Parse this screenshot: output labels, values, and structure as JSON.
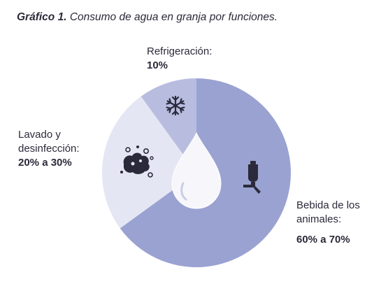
{
  "title": {
    "prefix": "Gráfico 1.",
    "text": "Consumo de agua en granja por funciones."
  },
  "chart_data": {
    "type": "pie",
    "title": "Gráfico 1. Consumo de agua en granja por funciones.",
    "slices": [
      {
        "label": "Bebida de los animales:",
        "value_label": "60% a 70%",
        "value": 65,
        "color": "#9aa2d1",
        "icon": "bottle-drinker-icon"
      },
      {
        "label": "Lavado y desinfección:",
        "value_label": "20% a 30%",
        "value": 25,
        "color": "#e4e6f3",
        "icon": "soap-bubbles-icon"
      },
      {
        "label": "Refrigeración:",
        "value_label": "10%",
        "value": 10,
        "color": "#b8bde0",
        "icon": "snowflake-icon"
      }
    ],
    "center_icon": "water-drop-icon",
    "legend": "none"
  },
  "labels": {
    "refrigeracion": {
      "name": "Refrigeración:",
      "pct": "10%"
    },
    "lavado": {
      "line1": "Lavado y",
      "line2": "desinfección:",
      "pct": "20% a 30%"
    },
    "bebida": {
      "line1": "Bebida de los",
      "line2": "animales:",
      "pct": "60% a 70%"
    }
  }
}
